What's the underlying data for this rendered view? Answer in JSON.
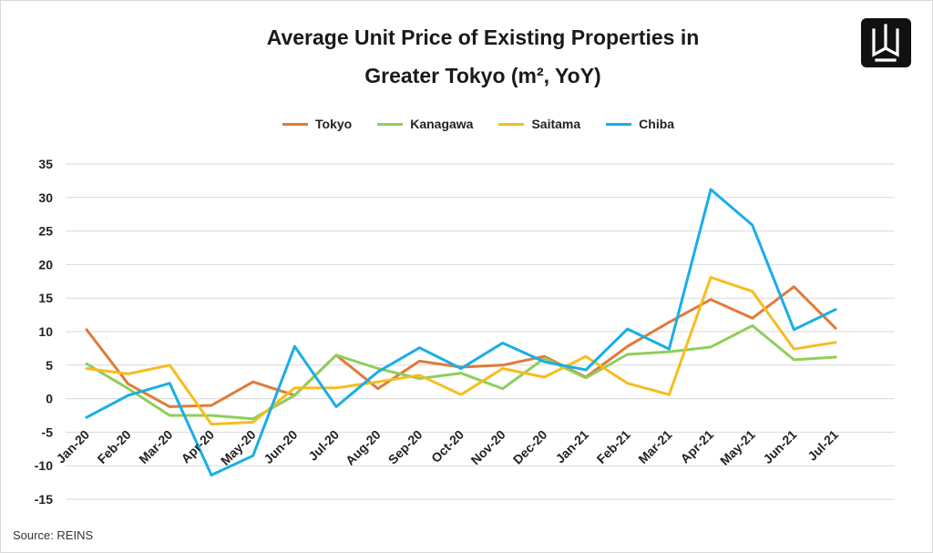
{
  "title_line1": "Average Unit Price of Existing Properties in",
  "title_line2": "Greater Tokyo (m², YoY)",
  "source": "Source: REINS",
  "logo_icon": "w-logo-icon",
  "chart_data": {
    "type": "line",
    "categories": [
      "Jan-20",
      "Feb-20",
      "Mar-20",
      "Apr-20",
      "May-20",
      "Jun-20",
      "Jul-20",
      "Aug-20",
      "Sep-20",
      "Oct-20",
      "Nov-20",
      "Dec-20",
      "Jan-21",
      "Feb-21",
      "Mar-21",
      "Apr-21",
      "May-21",
      "Jun-21",
      "Jul-21"
    ],
    "y_ticks": [
      35,
      30,
      25,
      20,
      15,
      10,
      5,
      0,
      -5,
      -10,
      -15
    ],
    "ylim": [
      -15,
      35
    ],
    "grid": "horizontal",
    "legend_position": "top",
    "series": [
      {
        "name": "Tokyo",
        "color": "#e07b39",
        "values": [
          10.3,
          2.2,
          -1.2,
          -1.0,
          2.5,
          0.5,
          6.5,
          1.5,
          5.6,
          4.7,
          5.0,
          6.3,
          3.2,
          7.8,
          11.4,
          14.8,
          12.0,
          16.7,
          10.5
        ]
      },
      {
        "name": "Kanagawa",
        "color": "#8fce5a",
        "values": [
          5.2,
          1.5,
          -2.5,
          -2.5,
          -3.0,
          0.5,
          6.5,
          4.5,
          3.0,
          3.8,
          1.5,
          6.0,
          3.1,
          6.6,
          7.0,
          7.7,
          10.9,
          5.8,
          6.2
        ]
      },
      {
        "name": "Saitama",
        "color": "#f5bd1f",
        "values": [
          4.5,
          3.7,
          5.0,
          -3.8,
          -3.5,
          1.6,
          1.6,
          2.5,
          3.5,
          0.6,
          4.5,
          3.2,
          6.3,
          2.3,
          0.6,
          18.1,
          16.0,
          7.4,
          8.4
        ]
      },
      {
        "name": "Chiba",
        "color": "#19aee6",
        "values": [
          -2.8,
          0.5,
          2.3,
          -11.4,
          -8.5,
          7.8,
          -1.2,
          4.0,
          7.6,
          4.5,
          8.3,
          5.5,
          4.3,
          10.4,
          7.4,
          31.2,
          25.9,
          10.3,
          13.3
        ]
      }
    ]
  }
}
